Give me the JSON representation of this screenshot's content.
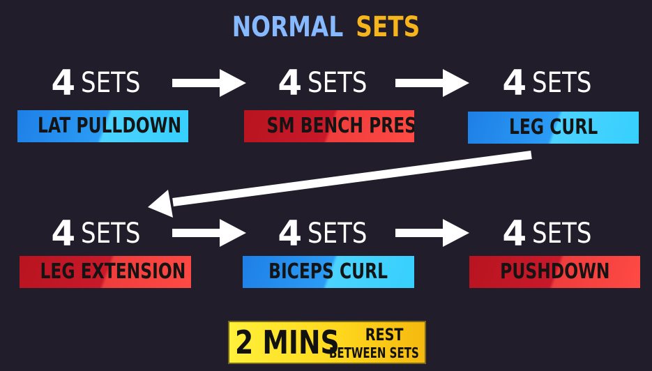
{
  "title": {
    "word1": "NORMAL",
    "word2": "SETS",
    "color1": "#86b9ff",
    "color2": "#f6b51c"
  },
  "exercises": [
    {
      "sets_count": "4",
      "sets_label": "SETS",
      "name": "LAT PULLDOWN",
      "color": "blue"
    },
    {
      "sets_count": "4",
      "sets_label": "SETS",
      "name": "SM BENCH PRESS",
      "color": "red"
    },
    {
      "sets_count": "4",
      "sets_label": "SETS",
      "name": "LEG CURL",
      "color": "blue"
    },
    {
      "sets_count": "4",
      "sets_label": "SETS",
      "name": "LEG EXTENSION",
      "color": "red"
    },
    {
      "sets_count": "4",
      "sets_label": "SETS",
      "name": "BICEPS CURL",
      "color": "blue"
    },
    {
      "sets_count": "4",
      "sets_label": "SETS",
      "name": "PUSHDOWN",
      "color": "red"
    }
  ],
  "rest": {
    "amount": "2 MINS",
    "line1": "REST",
    "line2": "BETWEEN SETS"
  }
}
